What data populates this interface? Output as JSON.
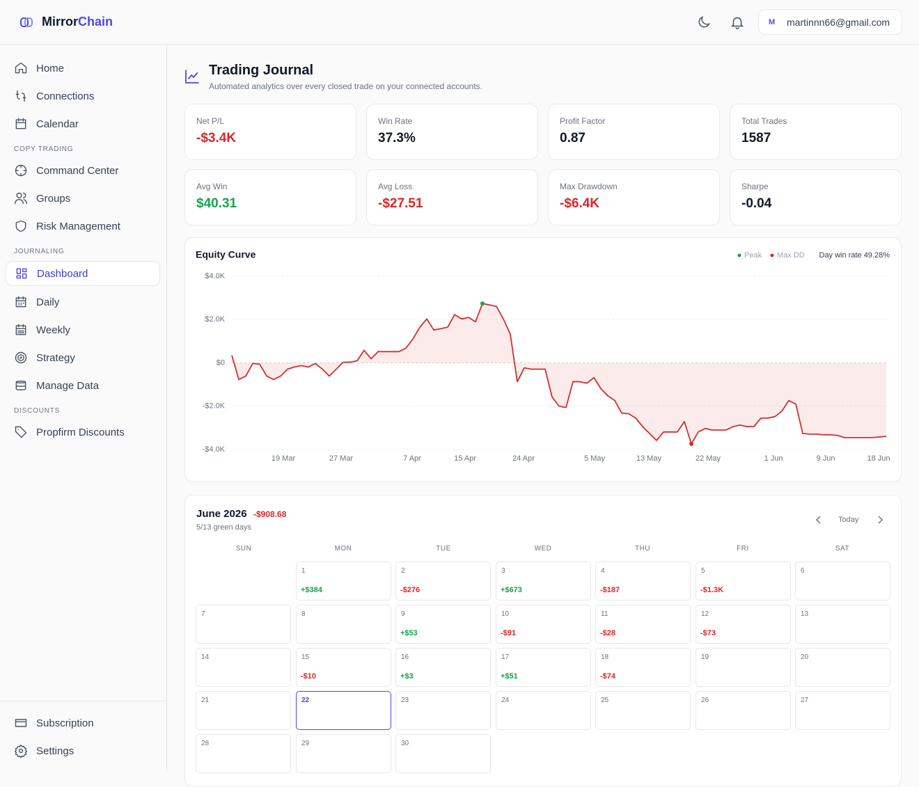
{
  "header": {
    "brand_a": "Mirror",
    "brand_b": "Chain",
    "user_initial": "M",
    "user_email": "martinnn66@gmail.com"
  },
  "sidebar": {
    "groups": [
      {
        "items": [
          {
            "label": "Home"
          },
          {
            "label": "Connections"
          },
          {
            "label": "Calendar"
          }
        ]
      },
      {
        "title": "COPY TRADING",
        "items": [
          {
            "label": "Command Center"
          },
          {
            "label": "Groups"
          },
          {
            "label": "Risk Management"
          }
        ]
      },
      {
        "title": "JOURNALING",
        "items": [
          {
            "label": "Dashboard",
            "active": true
          },
          {
            "label": "Daily"
          },
          {
            "label": "Weekly"
          },
          {
            "label": "Strategy"
          },
          {
            "label": "Manage Data"
          }
        ]
      },
      {
        "title": "DISCOUNTS",
        "items": [
          {
            "label": "Propfirm Discounts"
          }
        ]
      }
    ],
    "footer_items": [
      "Subscription",
      "Settings"
    ]
  },
  "page": {
    "title": "Trading Journal",
    "subtitle": "Automated analytics over every closed trade on your connected accounts."
  },
  "stats": [
    {
      "label": "Net P/L",
      "value": "-$3.4K",
      "color": "#dc2626"
    },
    {
      "label": "Win Rate",
      "value": "37.3%",
      "color": "#111827"
    },
    {
      "label": "Profit Factor",
      "value": "0.87",
      "color": "#111827"
    },
    {
      "label": "Total Trades",
      "value": "1587",
      "color": "#111827"
    },
    {
      "label": "Avg Win",
      "value": "$40.31",
      "color": "#16a34a"
    },
    {
      "label": "Avg Loss",
      "value": "-$27.51",
      "color": "#dc2626"
    },
    {
      "label": "Max Drawdown",
      "value": "-$6.4K",
      "color": "#dc2626"
    },
    {
      "label": "Sharpe",
      "value": "-0.04",
      "color": "#111827"
    }
  ],
  "chart_data": {
    "type": "line",
    "title": "Equity Curve",
    "color": "#d32f2f",
    "markers": [
      {
        "name": "Peak",
        "color": "#16a34a"
      },
      {
        "name": "Max DD",
        "color": "#dc2626"
      }
    ],
    "note": "Day win rate 49.28%",
    "x_labels": [
      "19 Mar",
      "27 Mar",
      "7 Apr",
      "15 Apr",
      "24 Apr",
      "5 May",
      "13 May",
      "22 May",
      "1 Jun",
      "9 Jun",
      "18 Jun"
    ],
    "values": [
      350,
      -770,
      -610,
      -30,
      -60,
      -610,
      -770,
      -610,
      -290,
      -190,
      -130,
      -190,
      -30,
      -290,
      -610,
      -290,
      30,
      30,
      100,
      580,
      190,
      520,
      520,
      520,
      520,
      680,
      1100,
      1650,
      2030,
      1520,
      1580,
      1650,
      2230,
      2030,
      2100,
      1900,
      2740,
      2680,
      2610,
      2030,
      1320,
      -870,
      -230,
      -290,
      -290,
      -290,
      -1580,
      -2000,
      -2060,
      -870,
      -870,
      -940,
      -680,
      -1190,
      -1520,
      -1740,
      -2320,
      -2350,
      -2550,
      -2940,
      -3260,
      -3580,
      -3190,
      -3190,
      -3190,
      -2710,
      -3740,
      -3190,
      -3030,
      -3100,
      -3100,
      -3100,
      -2940,
      -2870,
      -2940,
      -2940,
      -2550,
      -2550,
      -2480,
      -2230,
      -1740,
      -1900,
      -3260,
      -3290,
      -3290,
      -3320,
      -3320,
      -3350,
      -3450,
      -3450,
      -3450,
      -3450,
      -3450,
      -3420,
      -3390
    ],
    "ylim": [
      -4000,
      4000
    ],
    "yticks": [
      {
        "value": 4000,
        "label": "$4.0K"
      },
      {
        "value": 2000,
        "label": "$2.0K"
      },
      {
        "value": 0,
        "label": "$0"
      },
      {
        "value": -2000,
        "label": "-$2.0K"
      },
      {
        "value": -4000,
        "label": "-$4.0K"
      }
    ],
    "grid": true
  },
  "calendar": {
    "title": "June 2026",
    "total": "-$908.68",
    "subtitle": "5/13 green days",
    "today_label": "Today",
    "weekdays": [
      "SUN",
      "MON",
      "TUE",
      "WED",
      "THU",
      "FRI",
      "SAT"
    ],
    "days": [
      null,
      {
        "day": 1,
        "pnl": "+$384"
      },
      {
        "day": 2,
        "pnl": "-$276"
      },
      {
        "day": 3,
        "pnl": "+$673"
      },
      {
        "day": 4,
        "pnl": "-$187"
      },
      {
        "day": 5,
        "pnl": "-$1.3K"
      },
      {
        "day": 6
      },
      {
        "day": 7
      },
      {
        "day": 8
      },
      {
        "day": 9,
        "pnl": "+$53"
      },
      {
        "day": 10,
        "pnl": "-$91"
      },
      {
        "day": 11,
        "pnl": "-$28"
      },
      {
        "day": 12,
        "pnl": "-$73"
      },
      {
        "day": 13
      },
      {
        "day": 14
      },
      {
        "day": 15,
        "pnl": "-$10"
      },
      {
        "day": 16,
        "pnl": "+$3"
      },
      {
        "day": 17,
        "pnl": "+$51"
      },
      {
        "day": 18,
        "pnl": "-$74"
      },
      {
        "day": 19
      },
      {
        "day": 20
      },
      {
        "day": 21
      },
      {
        "day": 22,
        "selected": true
      },
      {
        "day": 23
      },
      {
        "day": 24
      },
      {
        "day": 25
      },
      {
        "day": 26
      },
      {
        "day": 27
      },
      {
        "day": 28
      },
      {
        "day": 29
      },
      {
        "day": 30
      }
    ]
  }
}
